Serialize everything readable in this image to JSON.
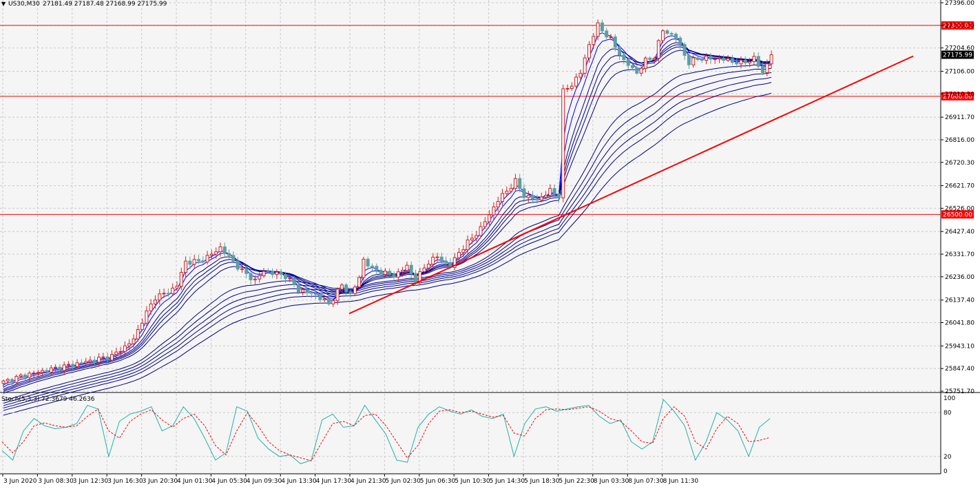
{
  "header": {
    "symbol_label": "US30,M30",
    "ohlc_label": "27181.49 27187.48 27168.99 27175.99"
  },
  "colors": {
    "background": "#f5f5f5",
    "grid": "#c8c8c8",
    "bull_candle": "#d62020",
    "bear_candle": "#5f9ea0",
    "ribbon": "#00008b",
    "ribbon_fast": "#0000ff",
    "level_line": "#ff0000",
    "trendline": "#ff0000",
    "stoch_main": "#20b2aa",
    "stoch_signal": "#ff0000",
    "current_price_box": "#000000"
  },
  "chart_data": [
    {
      "type": "candlestick",
      "title": "",
      "y_ticks": [
        25751.7,
        25847.4,
        25943.1,
        26041.8,
        26137.4,
        26236.0,
        26331.7,
        26427.4,
        26526.0,
        26621.7,
        26720.3,
        26816.0,
        26911.7,
        27010.3,
        27106.0,
        27204.6,
        27300.3,
        27396.0
      ],
      "y_tick_labels": [
        "25751.70",
        "25847.40",
        "25943.10",
        "26041.80",
        "26137.40",
        "26236.00",
        "26331.70",
        "26427.40",
        "26526.00",
        "26621.70",
        "26720.30",
        "26816.00",
        "26911.70",
        "27010.30",
        "27106.00",
        "27204.60",
        "27300.30",
        "27396.00"
      ],
      "ylim": [
        25751.7,
        27396.0
      ],
      "x_tick_labels": [
        "3 Jun 2020",
        "3 Jun 08:30",
        "3 Jun 12:30",
        "3 Jun 16:30",
        "3 Jun 20:30",
        "4 Jun 01:30",
        "4 Jun 05:30",
        "4 Jun 09:30",
        "4 Jun 13:30",
        "4 Jun 17:30",
        "4 Jun 21:30",
        "5 Jun 02:30",
        "5 Jun 06:30",
        "5 Jun 10:30",
        "5 Jun 14:30",
        "5 Jun 18:30",
        "5 Jun 22:30",
        "8 Jun 03:30",
        "8 Jun 07:30",
        "8 Jun 11:30"
      ],
      "bars_per_tick": 8,
      "horizontal_levels": [
        {
          "label": "27300.00",
          "value": 27300.0
        },
        {
          "label": "27000.00",
          "value": 27000.0
        },
        {
          "label": "26500.00",
          "value": 26500.0
        }
      ],
      "current_price": {
        "label": "27175.99",
        "value": 27175.99
      },
      "trendline": {
        "start": {
          "bar": 80,
          "price": 26080
        },
        "end": {
          "bar": 210,
          "price": 27170
        }
      },
      "close_anchors": [
        [
          0,
          25790
        ],
        [
          5,
          25820
        ],
        [
          10,
          25840
        ],
        [
          15,
          25860
        ],
        [
          20,
          25880
        ],
        [
          25,
          25900
        ],
        [
          28,
          25940
        ],
        [
          30,
          25970
        ],
        [
          32,
          26050
        ],
        [
          35,
          26150
        ],
        [
          38,
          26170
        ],
        [
          40,
          26200
        ],
        [
          42,
          26300
        ],
        [
          45,
          26300
        ],
        [
          48,
          26330
        ],
        [
          50,
          26360
        ],
        [
          52,
          26320
        ],
        [
          55,
          26260
        ],
        [
          58,
          26220
        ],
        [
          60,
          26260
        ],
        [
          65,
          26240
        ],
        [
          68,
          26180
        ],
        [
          72,
          26160
        ],
        [
          75,
          26120
        ],
        [
          78,
          26200
        ],
        [
          80,
          26160
        ],
        [
          82,
          26230
        ],
        [
          83,
          26310
        ],
        [
          85,
          26270
        ],
        [
          88,
          26250
        ],
        [
          90,
          26240
        ],
        [
          93,
          26280
        ],
        [
          95,
          26220
        ],
        [
          98,
          26300
        ],
        [
          100,
          26320
        ],
        [
          103,
          26280
        ],
        [
          105,
          26340
        ],
        [
          108,
          26400
        ],
        [
          110,
          26440
        ],
        [
          112,
          26500
        ],
        [
          114,
          26560
        ],
        [
          116,
          26600
        ],
        [
          118,
          26640
        ],
        [
          120,
          26580
        ],
        [
          123,
          26560
        ],
        [
          126,
          26600
        ],
        [
          128,
          26580
        ],
        [
          129,
          27020
        ],
        [
          131,
          27050
        ],
        [
          133,
          27100
        ],
        [
          135,
          27220
        ],
        [
          137,
          27300
        ],
        [
          140,
          27240
        ],
        [
          143,
          27150
        ],
        [
          146,
          27100
        ],
        [
          148,
          27150
        ],
        [
          150,
          27170
        ],
        [
          152,
          27280
        ],
        [
          155,
          27250
        ],
        [
          158,
          27140
        ],
        [
          160,
          27160
        ],
        [
          165,
          27160
        ],
        [
          170,
          27140
        ],
        [
          173,
          27160
        ],
        [
          175,
          27100
        ],
        [
          177,
          27175
        ]
      ],
      "ribbon_periods": [
        3,
        5,
        8,
        10,
        12,
        15,
        30,
        35,
        40,
        45,
        50,
        60
      ]
    },
    {
      "type": "line",
      "title": "Stoch(5,3,3) 72.3679 46.2636",
      "y_ticks": [
        0,
        20,
        80,
        100
      ],
      "y_tick_labels": [
        "0",
        "20",
        "80",
        "100"
      ],
      "ylim": [
        0,
        100
      ],
      "params": {
        "k": 5,
        "d": 3,
        "slowing": 3
      },
      "series": [
        {
          "name": "Main",
          "last_value": 72.3679,
          "values": [
            28,
            15,
            55,
            72,
            62,
            58,
            60,
            65,
            90,
            85,
            20,
            68,
            78,
            82,
            88,
            55,
            62,
            88,
            72,
            45,
            15,
            25,
            88,
            82,
            45,
            30,
            20,
            22,
            10,
            15,
            70,
            78,
            60,
            62,
            90,
            70,
            50,
            15,
            12,
            60,
            78,
            88,
            82,
            78,
            84,
            75,
            72,
            78,
            20,
            65,
            85,
            88,
            82,
            85,
            88,
            90,
            75,
            65,
            70,
            40,
            30,
            40,
            98,
            82,
            62,
            15,
            40,
            80,
            70,
            55,
            20,
            60,
            72
          ]
        },
        {
          "name": "Signal",
          "last_value": 46.2636,
          "values": [
            40,
            25,
            40,
            62,
            66,
            62,
            60,
            62,
            75,
            85,
            55,
            45,
            68,
            78,
            84,
            70,
            60,
            72,
            78,
            62,
            35,
            22,
            55,
            80,
            62,
            40,
            28,
            22,
            18,
            14,
            40,
            65,
            68,
            62,
            76,
            78,
            62,
            40,
            18,
            35,
            65,
            82,
            84,
            80,
            82,
            78,
            74,
            76,
            52,
            48,
            72,
            84,
            85,
            84,
            86,
            88,
            82,
            72,
            68,
            55,
            40,
            38,
            72,
            88,
            75,
            40,
            30,
            58,
            75,
            65,
            40,
            42,
            46
          ]
        }
      ]
    }
  ]
}
